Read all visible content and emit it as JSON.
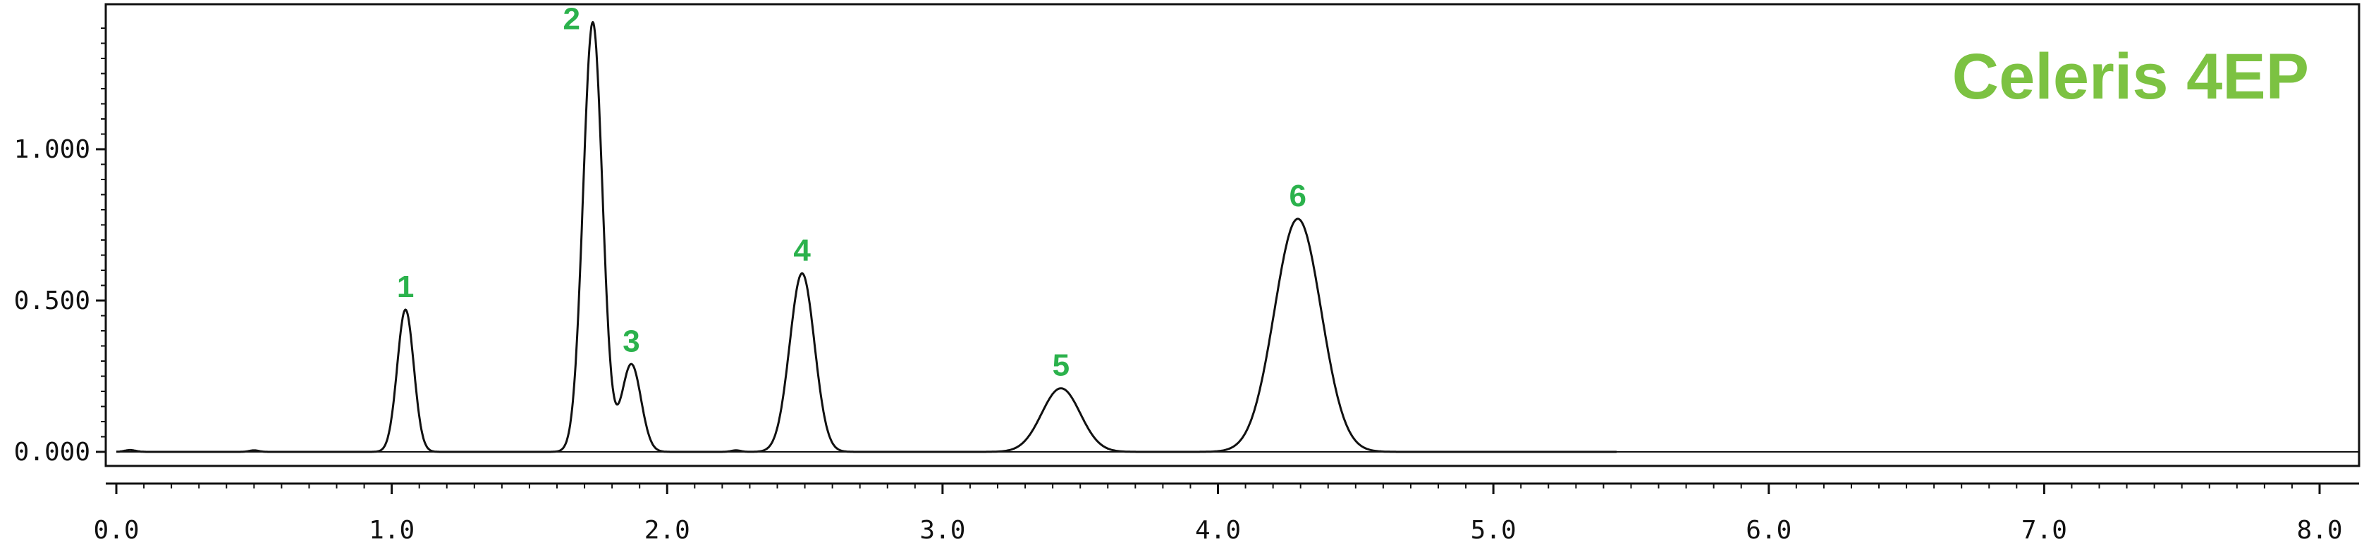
{
  "chart_data": {
    "type": "line",
    "title": "",
    "xlabel": "",
    "ylabel": "",
    "xlim": [
      0.0,
      8.0
    ],
    "ylim": [
      -0.05,
      1.45
    ],
    "grid": false,
    "x_ticks": [
      {
        "value": 0.0,
        "label": "0.0"
      },
      {
        "value": 1.0,
        "label": "1.0"
      },
      {
        "value": 2.0,
        "label": "2.0"
      },
      {
        "value": 3.0,
        "label": "3.0"
      },
      {
        "value": 4.0,
        "label": "4.0"
      },
      {
        "value": 5.0,
        "label": "5.0"
      },
      {
        "value": 6.0,
        "label": "6.0"
      },
      {
        "value": 7.0,
        "label": "7.0"
      },
      {
        "value": 8.0,
        "label": "8.0"
      }
    ],
    "y_ticks": [
      {
        "value": 0.0,
        "label": "0.000"
      },
      {
        "value": 0.5,
        "label": "0.500"
      },
      {
        "value": 1.0,
        "label": "1.000"
      }
    ],
    "peaks": [
      {
        "label": "1",
        "x": 1.05,
        "y": 0.47,
        "sigma": 0.03
      },
      {
        "label": "2",
        "x": 1.73,
        "y": 1.42,
        "sigma": 0.035
      },
      {
        "label": "3",
        "x": 1.87,
        "y": 0.29,
        "sigma": 0.035
      },
      {
        "label": "4",
        "x": 2.49,
        "y": 0.59,
        "sigma": 0.045
      },
      {
        "label": "5",
        "x": 3.43,
        "y": 0.21,
        "sigma": 0.07
      },
      {
        "label": "6",
        "x": 4.29,
        "y": 0.77,
        "sigma": 0.085
      }
    ],
    "annotation": "Celeris 4EP",
    "colors": {
      "trace": "#111111",
      "peak_labels": "#2bb24c",
      "annotation": "#7cc242",
      "axes": "#111111"
    }
  }
}
